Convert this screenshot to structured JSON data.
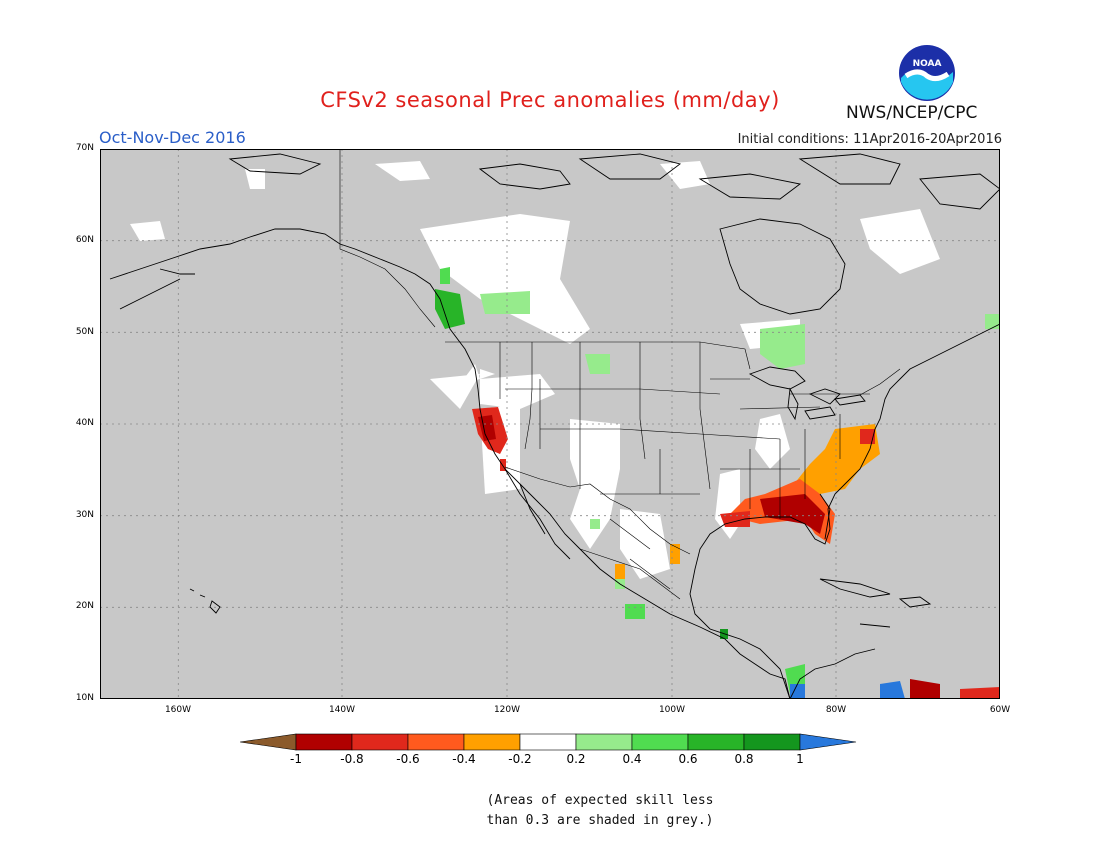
{
  "header": {
    "title": "CFSv2 seasonal Prec anomalies (mm/day)",
    "season": "Oct-Nov-Dec 2016",
    "initial_conditions": "Initial conditions: 11Apr2016-20Apr2016",
    "agency": "NWS/NCEP/CPC",
    "logo_text": "NOAA"
  },
  "map": {
    "region": "North America",
    "background_color": "#c8c8c8",
    "lat_labels": [
      "70N",
      "60N",
      "50N",
      "40N",
      "30N",
      "20N",
      "10N"
    ],
    "lon_labels": [
      "160W",
      "140W",
      "120W",
      "100W",
      "80W",
      "60W"
    ]
  },
  "legend": {
    "labels": [
      "-1",
      "-0.8",
      "-0.6",
      "-0.4",
      "-0.2",
      "0.2",
      "0.4",
      "0.6",
      "0.8",
      "1"
    ],
    "colors": [
      "#8b5a2b",
      "#b00000",
      "#e0281c",
      "#ff5a1e",
      "#ffa000",
      "#ffffff",
      "#96eb8c",
      "#50dc50",
      "#28b428",
      "#14961e",
      "#2878dc"
    ]
  },
  "footnote": {
    "line1": "(Areas of expected skill less",
    "line2": "than 0.3 are shaded in grey.)"
  }
}
